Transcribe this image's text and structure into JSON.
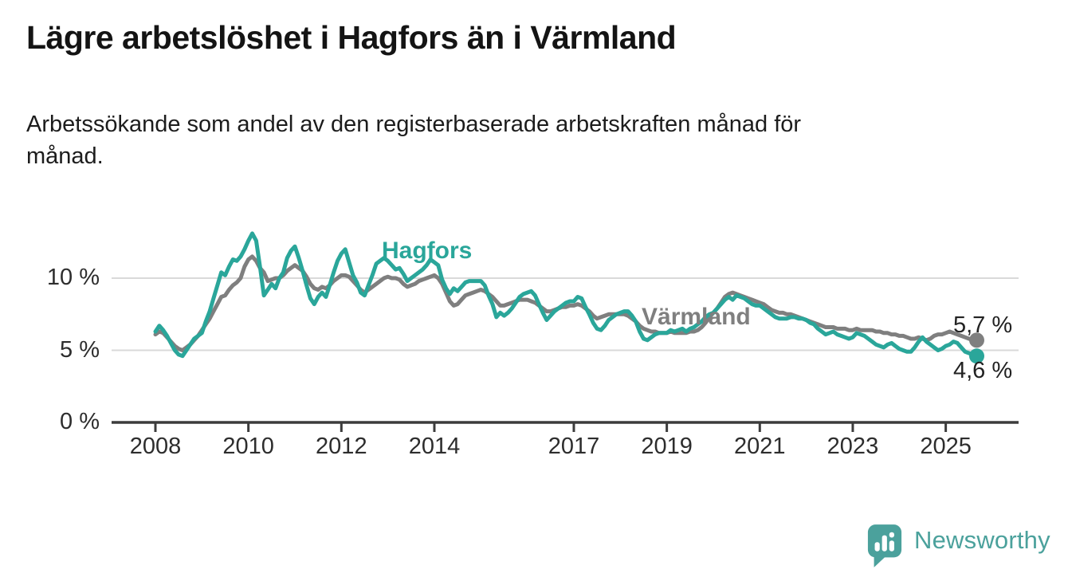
{
  "header": {
    "title": "Lägre arbetslöshet i Hagfors än i Värmland",
    "subtitle": "Arbetssökande som andel av den registerbaserade arbetskraften månad för månad."
  },
  "chart_data": {
    "type": "line",
    "unit": "percent",
    "grid": "horizontal",
    "x_start_year": 2008,
    "points_per_year": 12,
    "x_ticks": [
      {
        "year": 2008,
        "label": "2008"
      },
      {
        "year": 2010,
        "label": "2010"
      },
      {
        "year": 2012,
        "label": "2012"
      },
      {
        "year": 2014,
        "label": "2014"
      },
      {
        "year": 2017,
        "label": "2017"
      },
      {
        "year": 2019,
        "label": "2019"
      },
      {
        "year": 2021,
        "label": "2021"
      },
      {
        "year": 2023,
        "label": "2023"
      },
      {
        "year": 2025,
        "label": "2025"
      }
    ],
    "y_ticks": [
      {
        "value": 0,
        "label": "0 %"
      },
      {
        "value": 5,
        "label": "5 %"
      },
      {
        "value": 10,
        "label": "10 %"
      }
    ],
    "ylim": [
      0,
      14
    ],
    "series": [
      {
        "name": "Värmland",
        "color": "#7f7f7f",
        "end_label": "5,7 %",
        "end_value": 5.7,
        "values": [
          6.1,
          6.3,
          6.2,
          5.9,
          5.6,
          5.3,
          5.1,
          5.0,
          5.2,
          5.4,
          5.7,
          6.0,
          6.4,
          6.8,
          7.2,
          7.7,
          8.2,
          8.7,
          8.8,
          9.2,
          9.5,
          9.7,
          10.0,
          10.8,
          11.3,
          11.5,
          11.2,
          10.7,
          10.4,
          9.8,
          9.9,
          10.0,
          10.0,
          10.2,
          10.5,
          10.7,
          10.9,
          10.7,
          10.5,
          10.1,
          9.6,
          9.3,
          9.2,
          9.4,
          9.3,
          9.5,
          9.8,
          10.0,
          10.2,
          10.2,
          10.1,
          9.8,
          9.5,
          9.2,
          9.0,
          9.2,
          9.4,
          9.6,
          9.8,
          10.0,
          10.1,
          10.0,
          10.0,
          9.9,
          9.6,
          9.4,
          9.5,
          9.6,
          9.8,
          9.9,
          10.0,
          10.1,
          10.2,
          10.0,
          9.6,
          9.0,
          8.4,
          8.1,
          8.2,
          8.5,
          8.8,
          8.9,
          9.0,
          9.1,
          9.2,
          9.1,
          8.9,
          8.7,
          8.4,
          8.1,
          8.1,
          8.2,
          8.3,
          8.4,
          8.5,
          8.5,
          8.5,
          8.4,
          8.3,
          8.1,
          7.9,
          7.7,
          7.7,
          7.8,
          7.9,
          8.0,
          8.0,
          8.1,
          8.1,
          8.2,
          8.1,
          7.9,
          7.7,
          7.4,
          7.2,
          7.3,
          7.4,
          7.5,
          7.5,
          7.5,
          7.5,
          7.5,
          7.4,
          7.2,
          7.0,
          6.7,
          6.5,
          6.4,
          6.3,
          6.3,
          6.2,
          6.2,
          6.2,
          6.3,
          6.2,
          6.2,
          6.2,
          6.2,
          6.3,
          6.3,
          6.4,
          6.6,
          6.9,
          7.3,
          7.6,
          7.9,
          8.3,
          8.7,
          8.9,
          9.0,
          8.9,
          8.8,
          8.7,
          8.6,
          8.5,
          8.4,
          8.3,
          8.2,
          8.0,
          7.8,
          7.7,
          7.6,
          7.6,
          7.5,
          7.5,
          7.4,
          7.3,
          7.2,
          7.1,
          7.0,
          6.9,
          6.8,
          6.7,
          6.6,
          6.6,
          6.6,
          6.5,
          6.5,
          6.5,
          6.4,
          6.4,
          6.5,
          6.4,
          6.4,
          6.4,
          6.4,
          6.3,
          6.3,
          6.2,
          6.2,
          6.1,
          6.1,
          6.0,
          6.0,
          5.9,
          5.8,
          5.8,
          5.9,
          5.8,
          5.7,
          5.8,
          6.0,
          6.1,
          6.1,
          6.2,
          6.3,
          6.2,
          6.1,
          6.0,
          5.9,
          5.8,
          5.7,
          5.7
        ]
      },
      {
        "name": "Hagfors",
        "color": "#2aa69a",
        "end_label": "4,6 %",
        "end_value": 4.6,
        "values": [
          6.3,
          6.7,
          6.4,
          6.0,
          5.5,
          5.0,
          4.7,
          4.6,
          5.0,
          5.4,
          5.8,
          6.0,
          6.2,
          7.0,
          7.7,
          8.6,
          9.5,
          10.4,
          10.2,
          10.8,
          11.3,
          11.2,
          11.5,
          12.0,
          12.6,
          13.1,
          12.6,
          10.8,
          8.8,
          9.2,
          9.6,
          9.3,
          10.0,
          10.4,
          11.4,
          11.9,
          12.2,
          11.4,
          10.5,
          9.5,
          8.6,
          8.2,
          8.7,
          9.0,
          8.7,
          9.5,
          10.4,
          11.2,
          11.7,
          12.0,
          11.1,
          10.2,
          9.7,
          9.0,
          8.8,
          9.5,
          10.2,
          11.0,
          11.2,
          11.4,
          11.2,
          10.9,
          10.6,
          10.7,
          10.3,
          9.8,
          10.0,
          10.2,
          10.4,
          10.6,
          10.9,
          11.3,
          11.1,
          10.9,
          9.9,
          9.3,
          8.9,
          9.3,
          9.1,
          9.4,
          9.7,
          9.8,
          9.8,
          9.8,
          9.8,
          9.5,
          8.8,
          8.2,
          7.3,
          7.6,
          7.4,
          7.6,
          7.9,
          8.3,
          8.7,
          8.9,
          9.0,
          9.1,
          8.8,
          8.2,
          7.6,
          7.1,
          7.4,
          7.7,
          7.9,
          8.1,
          8.3,
          8.4,
          8.4,
          8.7,
          8.6,
          8.0,
          7.5,
          6.9,
          6.5,
          6.4,
          6.7,
          7.1,
          7.3,
          7.5,
          7.6,
          7.7,
          7.7,
          7.4,
          7.0,
          6.3,
          5.8,
          5.7,
          5.9,
          6.1,
          6.2,
          6.2,
          6.2,
          6.4,
          6.3,
          6.4,
          6.5,
          6.3,
          6.5,
          6.6,
          6.8,
          7.0,
          7.3,
          7.5,
          7.6,
          7.9,
          8.2,
          8.5,
          8.7,
          8.5,
          8.8,
          8.7,
          8.6,
          8.4,
          8.2,
          8.1,
          8.1,
          7.9,
          7.7,
          7.5,
          7.3,
          7.2,
          7.2,
          7.2,
          7.3,
          7.3,
          7.2,
          7.2,
          7.1,
          6.9,
          6.8,
          6.5,
          6.3,
          6.1,
          6.2,
          6.3,
          6.1,
          6.0,
          5.9,
          5.8,
          5.9,
          6.2,
          6.1,
          6.0,
          5.8,
          5.6,
          5.4,
          5.3,
          5.2,
          5.4,
          5.5,
          5.3,
          5.1,
          5.0,
          4.9,
          4.9,
          5.2,
          5.6,
          5.9,
          5.6,
          5.4,
          5.2,
          5.0,
          5.1,
          5.3,
          5.4,
          5.6,
          5.5,
          5.2,
          4.9,
          4.8,
          4.7,
          4.6
        ]
      }
    ]
  },
  "footer": {
    "brand": "Newsworthy",
    "brand_color": "#4ba19c"
  }
}
